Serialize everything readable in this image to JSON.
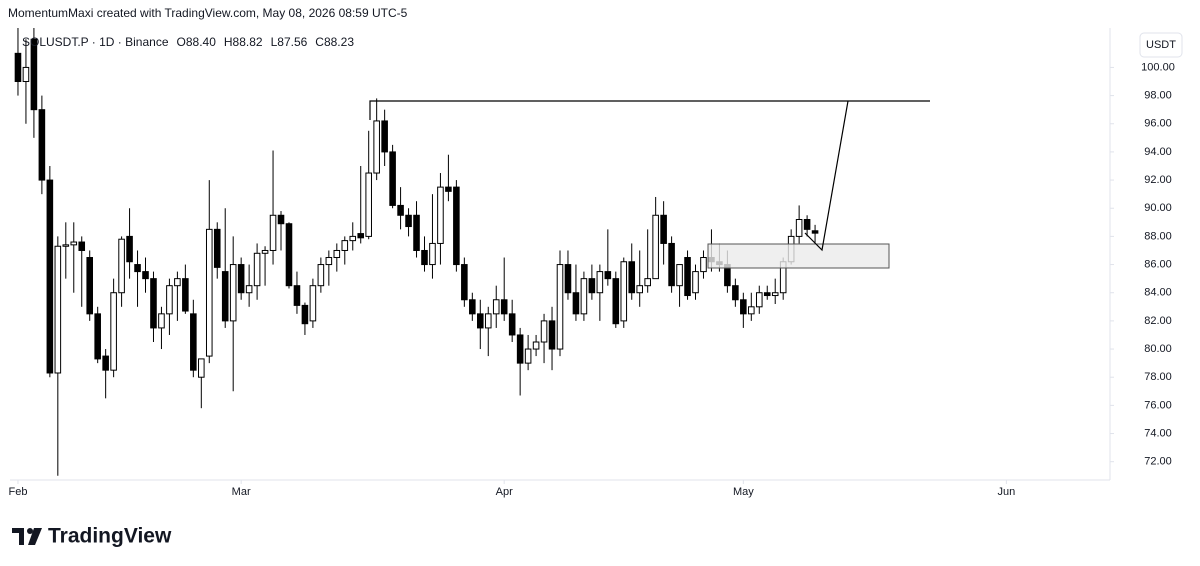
{
  "chart_data": {
    "type": "candlestick",
    "credit": "MomentumMaxi created with TradingView.com, May 08, 2026 08:59 UTC-5",
    "symbol": "SOLUSDT.P · 1D · Binance",
    "ohlc_labels": [
      "O88.40",
      "H88.82",
      "L87.56",
      "C88.23"
    ],
    "currency": "USDT",
    "brand": "TradingView",
    "up_color": "#ffffff",
    "down_color": "#000000",
    "border_color": "#000000",
    "x": [
      0,
      1,
      2,
      3,
      4,
      5,
      6,
      7,
      8,
      9,
      10,
      11,
      12,
      13,
      14,
      15,
      16,
      17,
      18,
      19,
      20,
      21,
      22,
      23,
      24,
      25,
      26,
      27,
      28,
      29,
      30,
      31,
      32,
      33,
      34,
      35,
      36,
      37,
      38,
      39,
      40,
      41,
      42,
      43,
      44,
      45,
      46,
      47,
      48,
      49,
      50,
      51,
      52,
      53,
      54,
      55,
      56,
      57,
      58,
      59,
      60,
      61,
      62,
      63,
      64,
      65,
      66,
      67,
      68,
      69,
      70,
      71,
      72,
      73,
      74,
      75,
      76,
      77,
      78,
      79,
      80,
      81,
      82,
      83,
      84,
      85,
      86,
      87,
      88,
      89,
      90,
      91,
      92,
      93,
      94,
      95,
      96,
      97,
      98,
      99,
      100
    ],
    "open": [
      101,
      99,
      102,
      97,
      92,
      78.3,
      87.3,
      87.4,
      87.6,
      86.5,
      82.5,
      79.5,
      78.5,
      84,
      88,
      86,
      85.5,
      85,
      81.5,
      82.5,
      84.5,
      85,
      82.5,
      78,
      79.5,
      88.5,
      85.5,
      82,
      86,
      84,
      84.5,
      86.8,
      87,
      89.5,
      88.9,
      84.5,
      83.1,
      82,
      84.5,
      86,
      86.5,
      87,
      87.7,
      88.2,
      88,
      92.5,
      96.2,
      94,
      90.2,
      89.5,
      89.5,
      87,
      86,
      87.5,
      91.5,
      91.5,
      86,
      83.5,
      82.5,
      81.5,
      82.5,
      83.5,
      82.5,
      81,
      79,
      80,
      80.5,
      82,
      80,
      86,
      84,
      82.5,
      85,
      84,
      85.5,
      85,
      82,
      86.2,
      84,
      84.5,
      85,
      89.5,
      87.5,
      84.5,
      86.5,
      84,
      85.5,
      86.5,
      86.2,
      86,
      84.5,
      83.5,
      82.5,
      83,
      84,
      83.8,
      84,
      86.2,
      88,
      89.2,
      88.4
    ],
    "high": [
      103,
      102,
      103,
      98,
      93,
      88,
      89,
      89,
      88,
      87,
      83,
      80,
      85,
      88,
      90,
      87,
      86.5,
      85.5,
      83,
      85,
      85.5,
      86,
      83.5,
      79,
      92,
      89,
      90,
      88,
      86.5,
      86,
      87.5,
      87.3,
      94.1,
      89.8,
      89,
      85.5,
      83.3,
      85,
      86.5,
      87,
      87.5,
      88,
      89,
      93,
      95.5,
      97.8,
      97,
      94.5,
      91.5,
      90,
      90.5,
      88,
      91,
      92.5,
      93.8,
      92,
      86.5,
      84,
      83.5,
      83,
      84.5,
      86.5,
      83.5,
      81.5,
      81,
      81,
      82.5,
      83,
      87,
      87,
      86,
      85.5,
      86,
      86,
      88.5,
      85.5,
      86.5,
      87.5,
      87,
      88.5,
      90.8,
      90.5,
      88,
      86,
      87,
      86,
      87,
      88.5,
      87.5,
      87,
      85,
      84,
      84,
      84.5,
      84.5,
      85,
      86.5,
      88.5,
      90.2,
      89.5,
      88.82
    ],
    "low": [
      98,
      96,
      95,
      91,
      78,
      71,
      85,
      84,
      83,
      82,
      79,
      76.5,
      78,
      83,
      85,
      83,
      84,
      80.5,
      80,
      81,
      82,
      82.5,
      78,
      75.8,
      79,
      85,
      81.5,
      77,
      83.5,
      83,
      83.5,
      84.5,
      86,
      87,
      84.3,
      82.5,
      81,
      81.5,
      84,
      84.5,
      85.5,
      86,
      87,
      87.5,
      87.8,
      92,
      93,
      90,
      88.5,
      88,
      86.5,
      85.5,
      85,
      86,
      90.5,
      85.5,
      83,
      82,
      80,
      79.5,
      81.5,
      82,
      80.5,
      76.7,
      78.5,
      79.5,
      79,
      78.5,
      79.5,
      83.5,
      82,
      82,
      83.5,
      82,
      84.5,
      81.5,
      81.5,
      83.5,
      83,
      84,
      85,
      86,
      84,
      83,
      83.5,
      83.5,
      85,
      85.5,
      85.5,
      84,
      83,
      81.5,
      82,
      82.5,
      83.5,
      83.2,
      83.5,
      86,
      87.5,
      88,
      87.56
    ],
    "close": [
      99,
      100,
      97,
      92,
      78.3,
      87.3,
      87.4,
      87.6,
      87,
      82.5,
      79.3,
      78.5,
      84,
      87.8,
      86.2,
      85.5,
      85,
      81.5,
      82.5,
      84.5,
      85,
      82.7,
      78.5,
      79.3,
      88.5,
      85.8,
      82,
      86,
      84,
      84.5,
      86.8,
      87,
      89.5,
      88.9,
      84.5,
      83.1,
      81.8,
      84.5,
      86,
      86.5,
      87,
      87.7,
      88,
      87.9,
      92.5,
      96.2,
      94,
      90.2,
      89.5,
      88.7,
      87,
      86,
      87.5,
      91.5,
      91.2,
      86,
      83.5,
      82.5,
      81.5,
      82.5,
      83.5,
      82.5,
      81,
      79,
      80,
      80.5,
      82,
      80,
      86,
      84,
      82.5,
      85,
      84,
      85.5,
      85,
      81.8,
      86.2,
      84,
      84.5,
      85,
      89.5,
      87.5,
      84.5,
      86,
      83.8,
      85.5,
      86.5,
      86.2,
      86,
      84.5,
      83.5,
      82.5,
      83,
      84,
      83.8,
      84,
      86.2,
      88,
      89.2,
      88.5,
      88.23
    ],
    "xlim": [
      -1,
      137
    ],
    "xticks": [
      {
        "value": 0,
        "label": "Feb"
      },
      {
        "value": 28,
        "label": "Mar"
      },
      {
        "value": 61,
        "label": "Apr"
      },
      {
        "value": 91,
        "label": "May"
      },
      {
        "value": 124,
        "label": "Jun"
      }
    ],
    "ylim": [
      70.7,
      102.8
    ],
    "yticks": [
      {
        "value": 72,
        "label": "72.00"
      },
      {
        "value": 74,
        "label": "74.00"
      },
      {
        "value": 76,
        "label": "76.00"
      },
      {
        "value": 78,
        "label": "78.00"
      },
      {
        "value": 80,
        "label": "80.00"
      },
      {
        "value": 82,
        "label": "82.00"
      },
      {
        "value": 84,
        "label": "84.00"
      },
      {
        "value": 86,
        "label": "86.00"
      },
      {
        "value": 88,
        "label": "88.00"
      },
      {
        "value": 90,
        "label": "90.00"
      },
      {
        "value": 92,
        "label": "92.00"
      },
      {
        "value": 94,
        "label": "94.00"
      },
      {
        "value": 96,
        "label": "96.00"
      },
      {
        "value": 98,
        "label": "98.00"
      },
      {
        "value": 100,
        "label": "100.00"
      }
    ],
    "grid": false
  }
}
